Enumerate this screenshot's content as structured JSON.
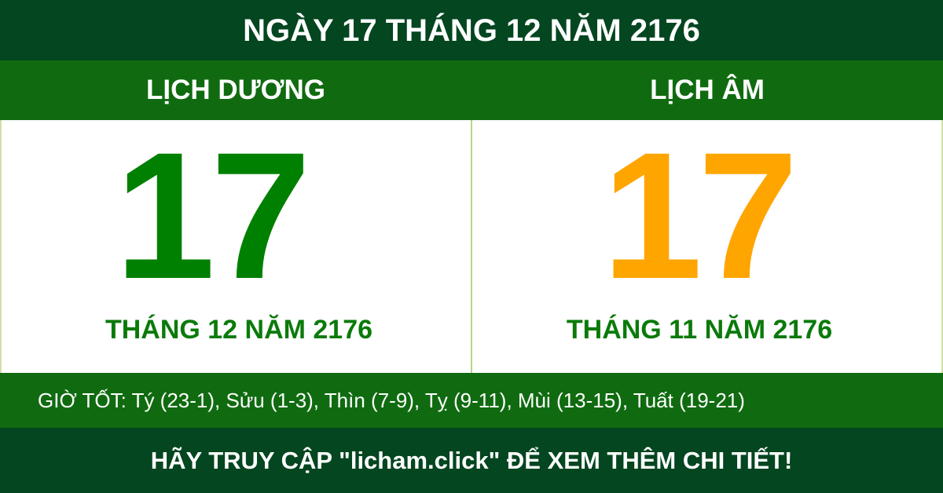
{
  "title": "NGÀY 17 THÁNG 12 NĂM 2176",
  "solar": {
    "heading": "LỊCH DƯƠNG",
    "day": "17",
    "month_year": "THÁNG 12 NĂM 2176"
  },
  "lunar": {
    "heading": "LỊCH ÂM",
    "day": "17",
    "month_year": "THÁNG 11 NĂM 2176"
  },
  "good_hours": "GIỜ TỐT: Tý (23-1), Sửu (1-3), Thìn (7-9), Tỵ (9-11), Mùi (13-15), Tuất (19-21)",
  "footer": "HÃY TRUY CẬP \"licham.click\" ĐỂ XEM THÊM CHI TIẾT!",
  "colors": {
    "dark_green": "#034620",
    "green": "#106b10",
    "solar_day": "#008000",
    "lunar_day": "#ffa500"
  }
}
